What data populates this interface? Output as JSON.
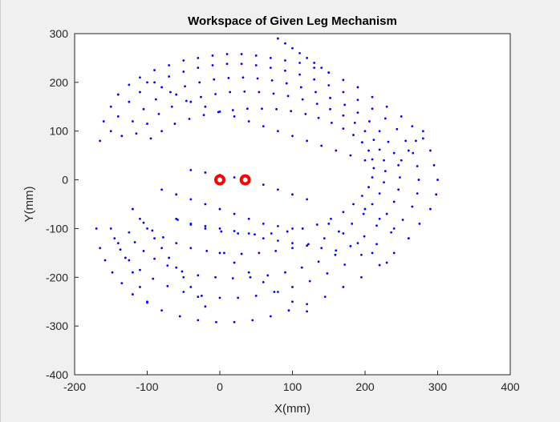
{
  "chart_data": {
    "type": "scatter",
    "title": "Workspace of Given Leg Mechanism",
    "xlabel": "X(mm)",
    "ylabel": "Y(mm)",
    "xlim": [
      -200,
      400
    ],
    "ylim": [
      -400,
      300
    ],
    "xticks": [
      -200,
      -100,
      0,
      100,
      200,
      300,
      400
    ],
    "yticks": [
      -400,
      -300,
      -200,
      -100,
      0,
      100,
      200,
      300
    ],
    "xtick_labels": [
      "-200",
      "-100",
      "0",
      "100",
      "200",
      "300",
      "400"
    ],
    "ytick_labels": [
      "-400",
      "-300",
      "-200",
      "-100",
      "0",
      "100",
      "200",
      "300"
    ],
    "grid": false,
    "series": [
      {
        "color": "#0000ff",
        "marker": "dot",
        "description_points": "approximate workspace sample points",
        "points": [
          [
            -165,
            80
          ],
          [
            -160,
            120
          ],
          [
            -150,
            150
          ],
          [
            -140,
            175
          ],
          [
            -125,
            195
          ],
          [
            -110,
            210
          ],
          [
            -90,
            225
          ],
          [
            -70,
            235
          ],
          [
            -50,
            245
          ],
          [
            -30,
            250
          ],
          [
            -10,
            255
          ],
          [
            10,
            258
          ],
          [
            30,
            258
          ],
          [
            50,
            255
          ],
          [
            70,
            250
          ],
          [
            90,
            245
          ],
          [
            110,
            240
          ],
          [
            130,
            230
          ],
          [
            150,
            220
          ],
          [
            170,
            205
          ],
          [
            190,
            190
          ],
          [
            210,
            170
          ],
          [
            230,
            150
          ],
          [
            250,
            130
          ],
          [
            265,
            110
          ],
          [
            280,
            85
          ],
          [
            290,
            60
          ],
          [
            295,
            30
          ],
          [
            300,
            0
          ],
          [
            298,
            -30
          ],
          [
            290,
            -60
          ],
          [
            275,
            -90
          ],
          [
            260,
            -120
          ],
          [
            240,
            -150
          ],
          [
            220,
            -175
          ],
          [
            195,
            -200
          ],
          [
            170,
            -220
          ],
          [
            145,
            -240
          ],
          [
            120,
            -255
          ],
          [
            95,
            -268
          ],
          [
            70,
            -280
          ],
          [
            45,
            -288
          ],
          [
            20,
            -292
          ],
          [
            -5,
            -292
          ],
          [
            -30,
            -288
          ],
          [
            -55,
            -280
          ],
          [
            -80,
            -268
          ],
          [
            -100,
            -252
          ],
          [
            -120,
            -235
          ],
          [
            -135,
            -212
          ],
          [
            -148,
            -190
          ],
          [
            -158,
            -165
          ],
          [
            -165,
            -140
          ],
          [
            -170,
            -100
          ],
          [
            -150,
            100
          ],
          [
            -140,
            130
          ],
          [
            -125,
            160
          ],
          [
            -110,
            180
          ],
          [
            -90,
            200
          ],
          [
            -70,
            212
          ],
          [
            -50,
            222
          ],
          [
            -30,
            230
          ],
          [
            -10,
            235
          ],
          [
            10,
            238
          ],
          [
            30,
            238
          ],
          [
            50,
            235
          ],
          [
            70,
            230
          ],
          [
            90,
            224
          ],
          [
            110,
            216
          ],
          [
            130,
            206
          ],
          [
            150,
            194
          ],
          [
            170,
            180
          ],
          [
            190,
            164
          ],
          [
            210,
            146
          ],
          [
            228,
            126
          ],
          [
            244,
            104
          ],
          [
            256,
            80
          ],
          [
            266,
            55
          ],
          [
            272,
            28
          ],
          [
            274,
            0
          ],
          [
            272,
            -28
          ],
          [
            265,
            -55
          ],
          [
            252,
            -82
          ],
          [
            236,
            -108
          ],
          [
            216,
            -132
          ],
          [
            195,
            -154
          ],
          [
            172,
            -174
          ],
          [
            148,
            -192
          ],
          [
            124,
            -208
          ],
          [
            100,
            -220
          ],
          [
            75,
            -230
          ],
          [
            50,
            -238
          ],
          [
            25,
            -242
          ],
          [
            0,
            -242
          ],
          [
            -25,
            -238
          ],
          [
            -50,
            -230
          ],
          [
            -72,
            -218
          ],
          [
            -92,
            -203
          ],
          [
            -110,
            -185
          ],
          [
            -125,
            -165
          ],
          [
            -137,
            -143
          ],
          [
            -145,
            -120
          ],
          [
            -135,
            90
          ],
          [
            -120,
            120
          ],
          [
            -105,
            145
          ],
          [
            -88,
            165
          ],
          [
            -68,
            180
          ],
          [
            -48,
            192
          ],
          [
            -28,
            200
          ],
          [
            -8,
            206
          ],
          [
            12,
            209
          ],
          [
            32,
            210
          ],
          [
            52,
            208
          ],
          [
            72,
            204
          ],
          [
            92,
            198
          ],
          [
            112,
            190
          ],
          [
            132,
            180
          ],
          [
            152,
            168
          ],
          [
            172,
            154
          ],
          [
            190,
            138
          ],
          [
            206,
            120
          ],
          [
            220,
            100
          ],
          [
            232,
            78
          ],
          [
            240,
            55
          ],
          [
            246,
            30
          ],
          [
            248,
            5
          ],
          [
            246,
            -20
          ],
          [
            240,
            -45
          ],
          [
            230,
            -70
          ],
          [
            216,
            -94
          ],
          [
            199,
            -116
          ],
          [
            180,
            -136
          ],
          [
            159,
            -154
          ],
          [
            136,
            -168
          ],
          [
            113,
            -180
          ],
          [
            90,
            -190
          ],
          [
            66,
            -196
          ],
          [
            42,
            -200
          ],
          [
            18,
            -202
          ],
          [
            -6,
            -200
          ],
          [
            -30,
            -196
          ],
          [
            -52,
            -188
          ],
          [
            -72,
            -176
          ],
          [
            -90,
            -162
          ],
          [
            -105,
            -146
          ],
          [
            -117,
            -128
          ],
          [
            -125,
            -108
          ],
          [
            -115,
            95
          ],
          [
            -100,
            115
          ],
          [
            -84,
            135
          ],
          [
            -66,
            150
          ],
          [
            -46,
            162
          ],
          [
            -26,
            170
          ],
          [
            -6,
            176
          ],
          [
            14,
            180
          ],
          [
            34,
            181
          ],
          [
            54,
            180
          ],
          [
            74,
            177
          ],
          [
            94,
            172
          ],
          [
            114,
            165
          ],
          [
            134,
            156
          ],
          [
            152,
            145
          ],
          [
            170,
            132
          ],
          [
            186,
            117
          ],
          [
            200,
            100
          ],
          [
            212,
            82
          ],
          [
            220,
            62
          ],
          [
            226,
            40
          ],
          [
            228,
            18
          ],
          [
            226,
            -5
          ],
          [
            220,
            -28
          ],
          [
            210,
            -50
          ],
          [
            198,
            -70
          ],
          [
            182,
            -90
          ],
          [
            164,
            -106
          ],
          [
            144,
            -120
          ],
          [
            122,
            -132
          ],
          [
            100,
            -140
          ],
          [
            77,
            -146
          ],
          [
            54,
            -150
          ],
          [
            30,
            -152
          ],
          [
            6,
            -150
          ],
          [
            -18,
            -146
          ],
          [
            -40,
            -140
          ],
          [
            -60,
            -130
          ],
          [
            -78,
            -118
          ],
          [
            -93,
            -104
          ],
          [
            -105,
            -88
          ],
          [
            -95,
            85
          ],
          [
            -80,
            100
          ],
          [
            -62,
            115
          ],
          [
            -42,
            125
          ],
          [
            -22,
            133
          ],
          [
            -2,
            139
          ],
          [
            18,
            143
          ],
          [
            38,
            146
          ],
          [
            58,
            146
          ],
          [
            78,
            145
          ],
          [
            98,
            141
          ],
          [
            118,
            135
          ],
          [
            136,
            127
          ],
          [
            154,
            117
          ],
          [
            170,
            105
          ],
          [
            184,
            92
          ],
          [
            196,
            77
          ],
          [
            205,
            60
          ],
          [
            210,
            42
          ],
          [
            212,
            24
          ],
          [
            210,
            5
          ],
          [
            205,
            -15
          ],
          [
            196,
            -33
          ],
          [
            184,
            -50
          ],
          [
            170,
            -66
          ],
          [
            153,
            -80
          ],
          [
            134,
            -92
          ],
          [
            114,
            -100
          ],
          [
            93,
            -106
          ],
          [
            71,
            -110
          ],
          [
            48,
            -112
          ],
          [
            25,
            -110
          ],
          [
            2,
            -106
          ],
          [
            -20,
            -100
          ],
          [
            -40,
            -92
          ],
          [
            -58,
            -82
          ],
          [
            -100,
            200
          ],
          [
            -80,
            190
          ],
          [
            -60,
            175
          ],
          [
            -40,
            160
          ],
          [
            -20,
            150
          ],
          [
            0,
            140
          ],
          [
            20,
            130
          ],
          [
            40,
            120
          ],
          [
            60,
            110
          ],
          [
            80,
            100
          ],
          [
            100,
            90
          ],
          [
            120,
            80
          ],
          [
            140,
            70
          ],
          [
            160,
            60
          ],
          [
            180,
            50
          ],
          [
            200,
            40
          ],
          [
            -120,
            -60
          ],
          [
            -110,
            -80
          ],
          [
            -100,
            -100
          ],
          [
            -90,
            -120
          ],
          [
            -80,
            -140
          ],
          [
            -70,
            -160
          ],
          [
            -60,
            -180
          ],
          [
            -50,
            -200
          ],
          [
            -40,
            -220
          ],
          [
            -30,
            -240
          ],
          [
            -20,
            -260
          ],
          [
            -60,
            -80
          ],
          [
            -40,
            -90
          ],
          [
            -20,
            -95
          ],
          [
            0,
            -100
          ],
          [
            20,
            -105
          ],
          [
            40,
            -110
          ],
          [
            60,
            -120
          ],
          [
            80,
            -125
          ],
          [
            100,
            -130
          ],
          [
            120,
            -135
          ],
          [
            140,
            -140
          ],
          [
            160,
            -145
          ],
          [
            -80,
            -20
          ],
          [
            -60,
            -30
          ],
          [
            -40,
            -40
          ],
          [
            -20,
            -50
          ],
          [
            0,
            -60
          ],
          [
            20,
            -70
          ],
          [
            40,
            -80
          ],
          [
            60,
            -90
          ],
          [
            80,
            -95
          ],
          [
            100,
            -100
          ],
          [
            -40,
            20
          ],
          [
            -20,
            15
          ],
          [
            0,
            10
          ],
          [
            20,
            5
          ],
          [
            40,
            0
          ],
          [
            60,
            -10
          ],
          [
            80,
            -20
          ],
          [
            100,
            -30
          ],
          [
            120,
            -40
          ],
          [
            -150,
            -100
          ],
          [
            -140,
            -130
          ],
          [
            -130,
            -160
          ],
          [
            -120,
            -190
          ],
          [
            -110,
            -220
          ],
          [
            -100,
            -250
          ],
          [
            0,
            -150
          ],
          [
            20,
            -170
          ],
          [
            40,
            -190
          ],
          [
            60,
            -210
          ],
          [
            80,
            -230
          ],
          [
            100,
            -250
          ],
          [
            120,
            -270
          ],
          [
            150,
            -90
          ],
          [
            170,
            -110
          ],
          [
            190,
            -130
          ],
          [
            210,
            -150
          ],
          [
            230,
            -170
          ],
          [
            200,
            -60
          ],
          [
            220,
            -80
          ],
          [
            240,
            -100
          ],
          [
            260,
            -120
          ],
          [
            250,
            40
          ],
          [
            260,
            60
          ],
          [
            270,
            80
          ],
          [
            280,
            100
          ],
          [
            80,
            290
          ],
          [
            90,
            280
          ],
          [
            100,
            270
          ],
          [
            110,
            260
          ],
          [
            120,
            250
          ],
          [
            130,
            240
          ],
          [
            140,
            230
          ],
          [
            150,
            220
          ]
        ]
      },
      {
        "color": "#ff0000",
        "marker": "ring",
        "points": [
          [
            0,
            0
          ],
          [
            35,
            0
          ]
        ]
      }
    ]
  }
}
